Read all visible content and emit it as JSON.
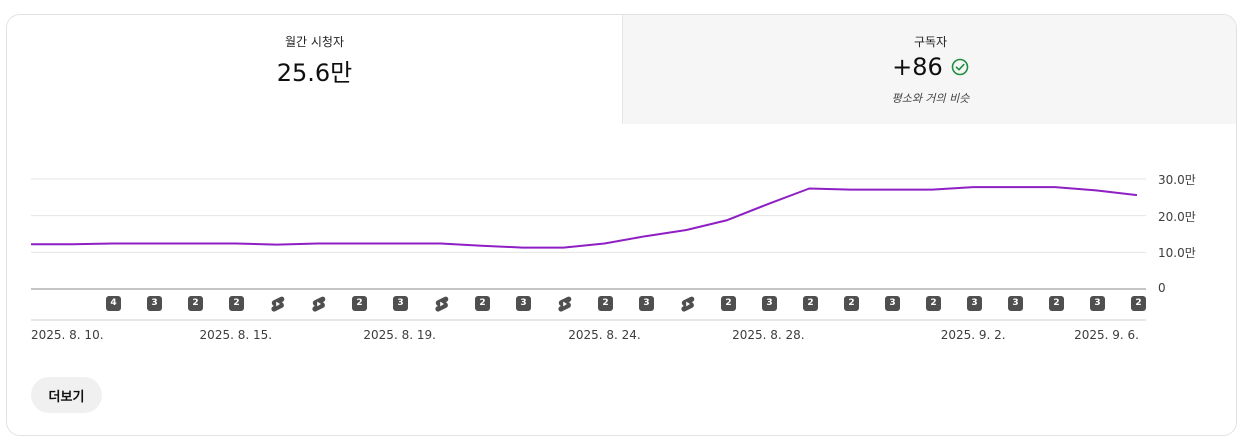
{
  "metrics": {
    "monthly_viewers": {
      "label": "월간 시청자",
      "value": "25.6만"
    },
    "subscribers": {
      "label": "구독자",
      "value": "+86",
      "note": "평소와 거의 비슷",
      "status_icon": "check-circle-icon",
      "status_color": "#1e8e3e"
    }
  },
  "chart_data": {
    "type": "line",
    "series": [
      {
        "values": [
          12.2,
          12.2,
          12.4,
          12.4,
          12.4,
          12.4,
          12.1,
          12.4,
          12.4,
          12.4,
          12.4,
          11.8,
          11.3,
          11.3,
          12.4,
          14.4,
          16.1,
          18.8,
          23.2,
          27.4,
          27.1,
          27.1,
          27.1,
          27.8,
          27.8,
          27.8,
          26.9,
          25.6
        ]
      }
    ],
    "x": [
      "2025. 8. 10.",
      "2025. 8. 11.",
      "2025. 8. 12.",
      "2025. 8. 13.",
      "2025. 8. 14.",
      "2025. 8. 15.",
      "2025. 8. 16.",
      "2025. 8. 17.",
      "2025. 8. 18.",
      "2025. 8. 19.",
      "2025. 8. 20.",
      "2025. 8. 21.",
      "2025. 8. 22.",
      "2025. 8. 23.",
      "2025. 8. 24.",
      "2025. 8. 25.",
      "2025. 8. 26.",
      "2025. 8. 27.",
      "2025. 8. 28.",
      "2025. 8. 29.",
      "2025. 8. 30.",
      "2025. 8. 31.",
      "2025. 9. 1.",
      "2025. 9. 2.",
      "2025. 9. 3.",
      "2025. 9. 4.",
      "2025. 9. 5.",
      "2025. 9. 6."
    ],
    "x_tick_labels": [
      "2025. 8. 10.",
      "2025. 8. 15.",
      "2025. 8. 19.",
      "2025. 8. 24.",
      "2025. 8. 28.",
      "2025. 9. 2.",
      "2025. 9. 6."
    ],
    "y_tick_labels": [
      "30.0만",
      "20.0만",
      "10.0만",
      "0"
    ],
    "y_ticks": [
      30,
      20,
      10,
      0
    ],
    "ylim": [
      0,
      30
    ],
    "line_color": "#8f1fc4",
    "grid": true,
    "upload_markers": [
      {
        "label": "4",
        "type": "count"
      },
      {
        "label": "3",
        "type": "count"
      },
      {
        "label": "2",
        "type": "count"
      },
      {
        "label": "2",
        "type": "count"
      },
      {
        "label": "",
        "type": "shorts"
      },
      {
        "label": "",
        "type": "shorts"
      },
      {
        "label": "2",
        "type": "count"
      },
      {
        "label": "3",
        "type": "count"
      },
      {
        "label": "",
        "type": "shorts"
      },
      {
        "label": "2",
        "type": "count"
      },
      {
        "label": "3",
        "type": "count"
      },
      {
        "label": "",
        "type": "shorts"
      },
      {
        "label": "2",
        "type": "count"
      },
      {
        "label": "3",
        "type": "count"
      },
      {
        "label": "",
        "type": "shorts"
      },
      {
        "label": "2",
        "type": "count"
      },
      {
        "label": "3",
        "type": "count"
      },
      {
        "label": "2",
        "type": "count"
      },
      {
        "label": "2",
        "type": "count"
      },
      {
        "label": "3",
        "type": "count"
      },
      {
        "label": "2",
        "type": "count"
      },
      {
        "label": "3",
        "type": "count"
      },
      {
        "label": "3",
        "type": "count"
      },
      {
        "label": "2",
        "type": "count"
      },
      {
        "label": "3",
        "type": "count"
      },
      {
        "label": "2",
        "type": "count"
      }
    ]
  },
  "more_button": {
    "label": "더보기"
  }
}
